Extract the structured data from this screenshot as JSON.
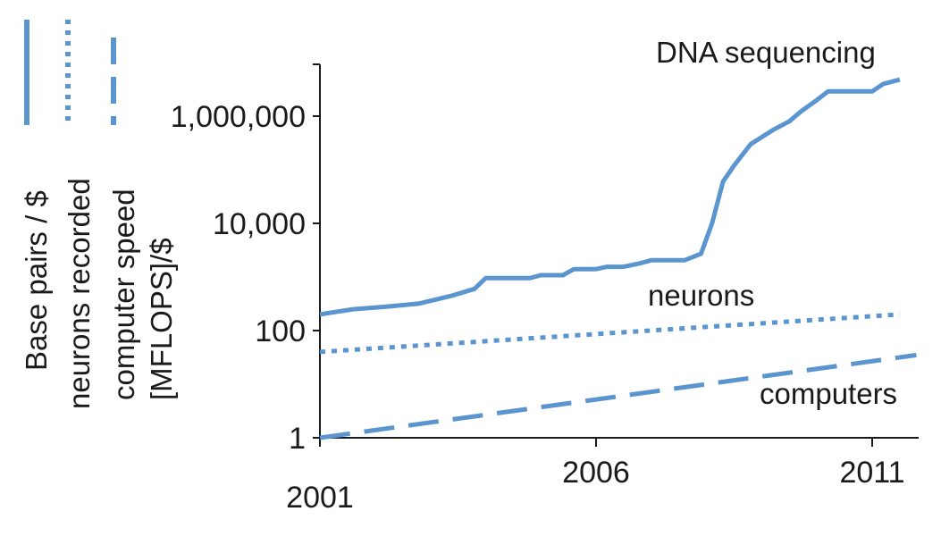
{
  "chart_data": {
    "type": "line",
    "y_scale": "log",
    "ylim": [
      1,
      10000000
    ],
    "xlim": [
      2001,
      2011.8
    ],
    "grid": false,
    "legend": "left, vertical",
    "y_ticks": [
      {
        "value": 1,
        "label": "1"
      },
      {
        "value": 100,
        "label": "100"
      },
      {
        "value": 10000,
        "label": "10,000"
      },
      {
        "value": 1000000,
        "label": "1,000,000"
      }
    ],
    "x_ticks": [
      {
        "value": 2001,
        "label": "2001"
      },
      {
        "value": 2006,
        "label": "2006"
      },
      {
        "value": 2011,
        "label": "2011"
      }
    ],
    "legend_labels": {
      "dna": "Base pairs / $",
      "neurons": "neurons recorded",
      "computers_line1": "computer speed",
      "computers_line2": "[MFLOPS]/$"
    },
    "series_labels": {
      "dna": "DNA sequencing",
      "neurons": "neurons",
      "computers": "computers"
    },
    "colors": {
      "line": "#5b95cf",
      "axis": "#1a1a1a"
    },
    "series": [
      {
        "key": "dna",
        "style": "solid",
        "points": [
          [
            2001.0,
            200
          ],
          [
            2001.6,
            250
          ],
          [
            2002.2,
            280
          ],
          [
            2002.8,
            320
          ],
          [
            2003.4,
            450
          ],
          [
            2003.8,
            600
          ],
          [
            2004.0,
            950
          ],
          [
            2004.4,
            950
          ],
          [
            2004.8,
            950
          ],
          [
            2005.0,
            1080
          ],
          [
            2005.4,
            1080
          ],
          [
            2005.6,
            1400
          ],
          [
            2006.0,
            1400
          ],
          [
            2006.2,
            1550
          ],
          [
            2006.5,
            1550
          ],
          [
            2006.8,
            1800
          ],
          [
            2007.0,
            2050
          ],
          [
            2007.4,
            2050
          ],
          [
            2007.6,
            2050
          ],
          [
            2007.9,
            2700
          ],
          [
            2008.1,
            10000
          ],
          [
            2008.3,
            60000
          ],
          [
            2008.5,
            120000
          ],
          [
            2008.8,
            300000
          ],
          [
            2009.2,
            550000
          ],
          [
            2009.5,
            800000
          ],
          [
            2009.7,
            1200000
          ],
          [
            2010.0,
            2000000
          ],
          [
            2010.2,
            2900000
          ],
          [
            2010.6,
            2900000
          ],
          [
            2011.0,
            2900000
          ],
          [
            2011.2,
            4000000
          ],
          [
            2011.5,
            4800000
          ]
        ]
      },
      {
        "key": "neurons",
        "style": "dotted",
        "points": [
          [
            2001.0,
            40
          ],
          [
            2011.5,
            200
          ]
        ]
      },
      {
        "key": "computers",
        "style": "dashed",
        "points": [
          [
            2001.0,
            1
          ],
          [
            2011.8,
            35
          ]
        ]
      }
    ]
  }
}
